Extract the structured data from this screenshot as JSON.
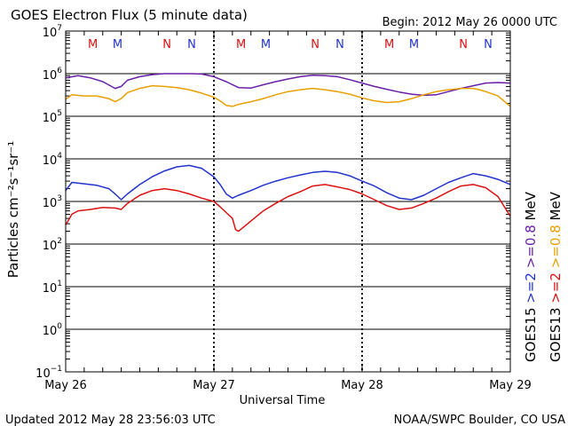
{
  "chart_data": {
    "type": "line",
    "title": "GOES Electron Flux (5 minute data)",
    "begin_label": "Begin: 2012 May 26 0000 UTC",
    "xlabel": "Universal Time",
    "ylabel": "Particles cm⁻²s⁻¹sr⁻¹",
    "updated_label": "Updated 2012 May 28 23:56:03 UTC",
    "source_label": "NOAA/SWPC Boulder, CO USA",
    "y_scale": "log",
    "ylim": [
      0.1,
      10000000
    ],
    "xlim": [
      0,
      72
    ],
    "x_unit": "hours since 2012 May 26 00:00 UTC",
    "x_tick_labels": [
      "May 26",
      "May 27",
      "May 28",
      "May 29"
    ],
    "x_ticks": [
      0,
      24,
      48,
      72
    ],
    "y_tick_exponents": [
      -1,
      0,
      1,
      2,
      3,
      4,
      5,
      6,
      7
    ],
    "y_tick_base": "10",
    "threshold_line": 1000,
    "grid": true,
    "legend_placement": "right, rotated vertical",
    "legend_left": [
      {
        "text": "GOES15",
        "color": "#000000"
      },
      {
        "text": ">=2",
        "color": "#2233cc"
      },
      {
        "text": ">=0.8",
        "color": "#6a1fa8"
      },
      {
        "text": "MeV",
        "color": "#000000"
      }
    ],
    "legend_right": [
      {
        "text": "GOES13",
        "color": "#000000"
      },
      {
        "text": ">=2",
        "color": "#dd1111"
      },
      {
        "text": ">=0.8",
        "color": "#e8a000"
      },
      {
        "text": "MeV",
        "color": "#000000"
      }
    ],
    "markers": [
      {
        "text": "M",
        "x": 4.4,
        "color": "#dd1111"
      },
      {
        "text": "M",
        "x": 8.4,
        "color": "#2233cc"
      },
      {
        "text": "N",
        "x": 16.4,
        "color": "#dd1111"
      },
      {
        "text": "N",
        "x": 20.4,
        "color": "#2233cc"
      },
      {
        "text": "M",
        "x": 28.4,
        "color": "#dd1111"
      },
      {
        "text": "M",
        "x": 32.4,
        "color": "#2233cc"
      },
      {
        "text": "N",
        "x": 40.4,
        "color": "#dd1111"
      },
      {
        "text": "N",
        "x": 44.4,
        "color": "#2233cc"
      },
      {
        "text": "M",
        "x": 52.4,
        "color": "#dd1111"
      },
      {
        "text": "M",
        "x": 56.4,
        "color": "#2233cc"
      },
      {
        "text": "N",
        "x": 64.4,
        "color": "#dd1111"
      },
      {
        "text": "N",
        "x": 68.4,
        "color": "#2233cc"
      }
    ],
    "series": [
      {
        "name": "GOES15 >=0.8 MeV",
        "color": "#6a1fa8",
        "x": [
          0,
          2,
          4,
          6,
          8,
          9,
          10,
          12,
          14,
          16,
          18,
          20,
          22,
          24,
          26,
          28,
          30,
          32,
          34,
          36,
          38,
          40,
          42,
          44,
          46,
          48,
          50,
          52,
          54,
          56,
          58,
          60,
          62,
          64,
          66,
          67,
          68,
          70,
          72
        ],
        "y": [
          800000,
          900000,
          800000,
          650000,
          450000,
          500000,
          700000,
          850000,
          950000,
          1000000,
          1000000,
          1000000,
          980000,
          850000,
          650000,
          470000,
          460000,
          550000,
          650000,
          750000,
          850000,
          920000,
          900000,
          850000,
          720000,
          600000,
          500000,
          430000,
          370000,
          330000,
          310000,
          320000,
          380000,
          450000,
          520000,
          560000,
          600000,
          620000,
          600000
        ]
      },
      {
        "name": "GOES13 >=0.8 MeV",
        "color": "#e8a000",
        "x": [
          0,
          1,
          3,
          5,
          7,
          8,
          9,
          10,
          12,
          14,
          16,
          18,
          20,
          22,
          24,
          25,
          26,
          27,
          28,
          30,
          32,
          34,
          36,
          38,
          40,
          42,
          44,
          46,
          48,
          50,
          52,
          54,
          56,
          58,
          60,
          62,
          64,
          66,
          67,
          68,
          70,
          72
        ],
        "y": [
          250000,
          320000,
          300000,
          300000,
          260000,
          220000,
          260000,
          360000,
          450000,
          520000,
          500000,
          470000,
          420000,
          350000,
          280000,
          230000,
          180000,
          170000,
          190000,
          220000,
          260000,
          320000,
          380000,
          420000,
          450000,
          420000,
          380000,
          330000,
          270000,
          230000,
          210000,
          220000,
          260000,
          320000,
          380000,
          420000,
          450000,
          450000,
          420000,
          380000,
          300000,
          170000
        ]
      },
      {
        "name": "GOES15 >=2 MeV",
        "color": "#2233cc",
        "x": [
          0,
          1,
          3,
          5,
          7,
          8,
          9,
          10,
          12,
          14,
          16,
          18,
          20,
          22,
          24,
          25,
          26,
          27,
          28,
          30,
          32,
          34,
          36,
          38,
          40,
          42,
          44,
          46,
          48,
          50,
          52,
          54,
          56,
          58,
          60,
          62,
          64,
          66,
          68,
          70,
          72
        ],
        "y": [
          1800,
          2800,
          2600,
          2400,
          2000,
          1500,
          1100,
          1500,
          2500,
          3800,
          5200,
          6500,
          7000,
          6000,
          3800,
          2500,
          1500,
          1200,
          1400,
          1800,
          2400,
          3000,
          3600,
          4200,
          4800,
          5100,
          4800,
          4000,
          3000,
          2300,
          1600,
          1200,
          1100,
          1400,
          2000,
          2800,
          3600,
          4500,
          4000,
          3300,
          2500
        ]
      },
      {
        "name": "GOES13 >=2 MeV",
        "color": "#dd1111",
        "x": [
          0,
          1,
          2,
          4,
          6,
          8,
          9,
          10,
          12,
          14,
          16,
          18,
          20,
          22,
          24,
          25,
          26,
          27,
          27.5,
          28,
          30,
          32,
          34,
          36,
          38,
          40,
          42,
          44,
          46,
          48,
          50,
          52,
          54,
          56,
          58,
          60,
          62,
          64,
          66,
          68,
          70,
          72
        ],
        "y": [
          280,
          500,
          600,
          650,
          720,
          700,
          650,
          900,
          1400,
          1800,
          2000,
          1800,
          1500,
          1200,
          1000,
          750,
          550,
          400,
          220,
          200,
          350,
          600,
          900,
          1300,
          1700,
          2300,
          2500,
          2200,
          1900,
          1500,
          1100,
          800,
          650,
          700,
          900,
          1200,
          1700,
          2300,
          2500,
          2100,
          1300,
          450
        ]
      }
    ]
  }
}
